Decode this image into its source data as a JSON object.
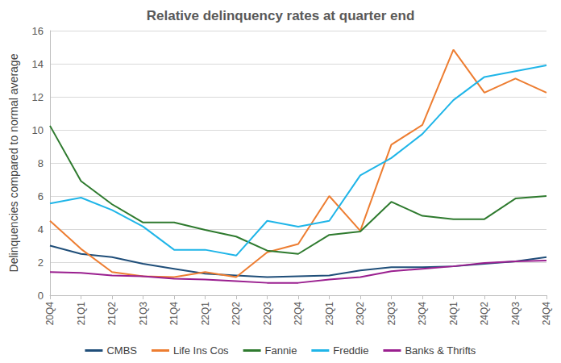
{
  "chart_data": {
    "type": "line",
    "title": "Relative delinquency rates at quarter end",
    "y_label": "Delinquencies compared to normal average",
    "categories": [
      "20Q4",
      "21Q1",
      "21Q2",
      "21Q3",
      "21Q4",
      "22Q1",
      "22Q2",
      "22Q3",
      "22Q4",
      "23Q1",
      "23Q2",
      "23Q3",
      "23Q4",
      "24Q1",
      "24Q2",
      "24Q3",
      "24Q4"
    ],
    "series": [
      {
        "name": "CMBS",
        "color": "#1f4e79",
        "values": [
          3.0,
          2.5,
          2.3,
          1.9,
          1.6,
          1.3,
          1.2,
          1.1,
          1.15,
          1.2,
          1.5,
          1.7,
          1.7,
          1.75,
          1.9,
          2.05,
          2.3
        ]
      },
      {
        "name": "Life Ins Cos",
        "color": "#ed7d31",
        "values": [
          4.5,
          2.8,
          1.4,
          1.15,
          1.1,
          1.4,
          1.1,
          2.6,
          3.1,
          6.0,
          3.9,
          9.1,
          10.3,
          14.85,
          12.25,
          13.1,
          12.25
        ]
      },
      {
        "name": "Fannie",
        "color": "#2e7a2e",
        "values": [
          10.25,
          6.9,
          5.5,
          4.4,
          4.4,
          3.95,
          3.55,
          2.7,
          2.5,
          3.65,
          3.85,
          5.65,
          4.8,
          4.6,
          4.6,
          5.85,
          6.0
        ]
      },
      {
        "name": "Freddie",
        "color": "#1fb5e8",
        "values": [
          5.55,
          5.9,
          5.15,
          4.15,
          2.75,
          2.75,
          2.4,
          4.5,
          4.15,
          4.5,
          7.25,
          8.3,
          9.75,
          11.8,
          13.2,
          13.55,
          13.9
        ]
      },
      {
        "name": "Banks & Thrifts",
        "color": "#9a1f8f",
        "values": [
          1.4,
          1.35,
          1.2,
          1.15,
          1.0,
          0.95,
          0.85,
          0.75,
          0.75,
          0.95,
          1.1,
          1.45,
          1.6,
          1.75,
          1.95,
          2.05,
          2.1
        ]
      }
    ],
    "ylim": [
      0,
      16
    ],
    "yticks": [
      0,
      2,
      4,
      6,
      8,
      10,
      12,
      14,
      16
    ],
    "grid": true,
    "legend": "bottom",
    "marker": "none"
  }
}
